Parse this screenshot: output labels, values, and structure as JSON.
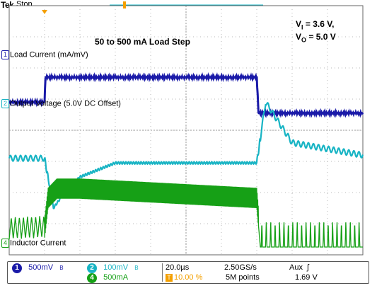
{
  "header": {
    "brand": "Tek",
    "status": "Stop"
  },
  "annotations": {
    "title": "50 to 500 mA Load Step",
    "vi_label": "V",
    "vi_sub": "I",
    "vi_value": " = 3.6 V,",
    "vo_label": "V",
    "vo_sub": "O",
    "vo_value": " = 5.0 V"
  },
  "channel_labels": [
    {
      "num": "1",
      "text": "Load Current (mA/mV)",
      "color": "#1a1aa8"
    },
    {
      "num": "2",
      "text": "Output Voltage (5.0V DC Offset)",
      "color": "#18b4c4"
    },
    {
      "num": "4",
      "text": "Inductor Current",
      "color": "#16a016"
    }
  ],
  "footer": {
    "ch1_num": "1",
    "ch1_scale": "500mV",
    "ch1_bw": "B",
    "ch2_num": "2",
    "ch2_scale": "100mV",
    "ch2_bw": "B",
    "ch4_num": "4",
    "ch4_scale": "500mA",
    "timebase": "20.0µs",
    "trigger_pos_icon": "T",
    "trigger_pos": "10.00 %",
    "sample_rate": "2.50GS/s",
    "record_length": "5M points",
    "trigger_source": "Aux",
    "trigger_slope_icon": "ʃ",
    "trigger_level": "1.69 V"
  },
  "colors": {
    "ch1": "#1a1aa8",
    "ch2": "#18b4c4",
    "ch4": "#16a016",
    "trigger": "#f4a000",
    "grid": "#b8b8b8"
  },
  "chart_data": {
    "type": "line",
    "title": "50 to 500 mA Load Step",
    "x_unit": "µs",
    "x_divisions": 10,
    "time_per_div_us": 20,
    "trigger_position_percent": 10,
    "grid": true,
    "series": [
      {
        "name": "Load Current (mA/mV)",
        "scale": "500mV/div",
        "x": [
          0,
          20,
          20,
          140,
          140,
          200
        ],
        "level_div": [
          0.5,
          0.5,
          3.5,
          3.5,
          0.5,
          0.5
        ],
        "points_div": [
          [
            0,
            4.9
          ],
          [
            20,
            4.9
          ],
          [
            20.5,
            5.7
          ],
          [
            140,
            5.7
          ],
          [
            141,
            4.55
          ],
          [
            200,
            4.55
          ]
        ]
      },
      {
        "name": "Output Voltage (5.0V DC Offset)",
        "scale": "100mV/div",
        "points_div": [
          [
            0,
            3.1
          ],
          [
            20,
            3.1
          ],
          [
            25,
            1.5
          ],
          [
            30,
            1.9
          ],
          [
            40,
            2.5
          ],
          [
            60,
            2.95
          ],
          [
            140,
            2.95
          ],
          [
            145,
            4.9
          ],
          [
            160,
            3.6
          ],
          [
            200,
            3.2
          ]
        ]
      },
      {
        "name": "Inductor Current",
        "scale": "500mA/div",
        "points_div": [
          [
            0,
            0.55
          ],
          [
            20,
            0.6
          ],
          [
            22,
            1.6
          ],
          [
            27,
            1.9
          ],
          [
            40,
            1.9
          ],
          [
            140,
            1.6
          ],
          [
            142,
            0.25
          ],
          [
            200,
            0.25
          ]
        ]
      }
    ]
  }
}
